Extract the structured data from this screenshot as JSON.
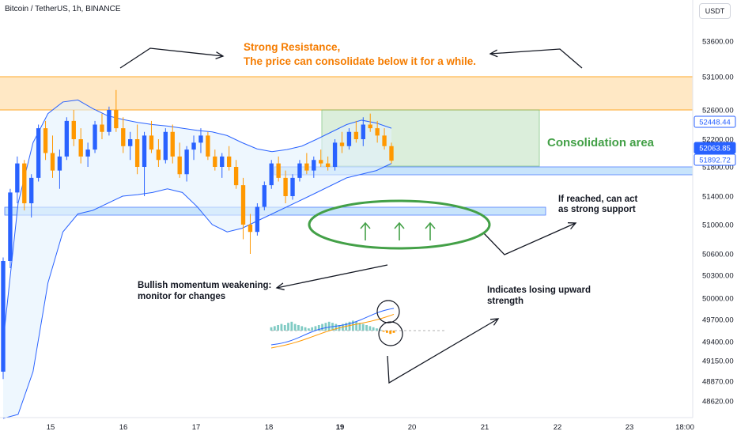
{
  "header": {
    "symbol": "Bitcoin / TetherUS, 1h, BINANCE",
    "currency": "USDT"
  },
  "colors": {
    "up": "#26a69a",
    "down": "#ef5350",
    "candle_up": "#2962ff",
    "candle_down": "#ff9800",
    "band": "#2962ff",
    "resistance_fill": "#ffe0b2",
    "support_fill": "#bbdefb",
    "consolidation_fill": "#c8e6c9",
    "annotation_orange": "#f57c00",
    "annotation_green": "#43a047"
  },
  "chart_data": {
    "type": "candlestick",
    "title": "Bitcoin / TetherUS, 1h, BINANCE",
    "y_axis": {
      "ticks": [
        53600,
        53100,
        52600,
        52200,
        51800,
        51400,
        51000,
        50600,
        50300,
        50000,
        49700,
        49400,
        49150,
        48870,
        48620
      ],
      "tick_labels": [
        "53600.00",
        "53100.00",
        "52600.00",
        "52200.00",
        "51800.00",
        "51400.00",
        "51000.00",
        "50600.00",
        "50300.00",
        "50000.00",
        "49700.00",
        "49400.00",
        "49150.00",
        "48870.00",
        "48620.00"
      ],
      "log_scale": true
    },
    "x_axis": {
      "tick_labels": [
        "15",
        "16",
        "17",
        "18",
        "19",
        "20",
        "21",
        "22",
        "23",
        "18:00"
      ],
      "bold_tick": "19"
    },
    "price_tags": [
      {
        "label": "52448.44",
        "value": 52448.44,
        "style": "plain"
      },
      {
        "label": "52063.85",
        "value": 52063.85,
        "style": "current"
      },
      {
        "label": "51892.72",
        "value": 51892.72,
        "style": "plain"
      }
    ],
    "zones": [
      {
        "name": "strong-resistance",
        "from": 52600,
        "to": 53060
      },
      {
        "name": "support-upper",
        "from": 51745,
        "to": 51890
      },
      {
        "name": "support-lower",
        "from": 51170,
        "to": 51300
      },
      {
        "name": "consolidation-area",
        "from": 51892,
        "to": 52620
      }
    ],
    "candles_ohlc": [
      [
        49000,
        50550,
        48900,
        50500
      ],
      [
        50500,
        51500,
        50400,
        51450
      ],
      [
        51450,
        51950,
        51300,
        51850
      ],
      [
        51850,
        51900,
        51200,
        51300
      ],
      [
        51300,
        51700,
        51100,
        51650
      ],
      [
        51650,
        52400,
        51600,
        52350
      ],
      [
        52350,
        52450,
        51900,
        52000
      ],
      [
        52000,
        52250,
        51650,
        51750
      ],
      [
        51750,
        52050,
        51500,
        51950
      ],
      [
        51950,
        52500,
        51900,
        52450
      ],
      [
        52450,
        52600,
        52100,
        52200
      ],
      [
        52200,
        52350,
        51850,
        51950
      ],
      [
        51950,
        52150,
        51800,
        52050
      ],
      [
        52050,
        52450,
        52000,
        52400
      ],
      [
        52400,
        52550,
        52200,
        52300
      ],
      [
        52300,
        52650,
        52250,
        52600
      ],
      [
        52600,
        52900,
        52300,
        52350
      ],
      [
        52350,
        52500,
        52000,
        52100
      ],
      [
        52100,
        52300,
        51900,
        52200
      ],
      [
        52200,
        52400,
        51700,
        51800
      ],
      [
        51800,
        52300,
        51400,
        52250
      ],
      [
        52250,
        52450,
        52000,
        52050
      ],
      [
        52050,
        52200,
        51800,
        51900
      ],
      [
        51900,
        52350,
        51850,
        52300
      ],
      [
        52300,
        52400,
        51850,
        51950
      ],
      [
        51950,
        52150,
        51650,
        51700
      ],
      [
        51700,
        52100,
        51600,
        52050
      ],
      [
        52050,
        52250,
        51900,
        52150
      ],
      [
        52150,
        52350,
        52000,
        52250
      ],
      [
        52250,
        52300,
        51900,
        51950
      ],
      [
        51950,
        52050,
        51750,
        51800
      ],
      [
        51800,
        52000,
        51650,
        51950
      ],
      [
        51950,
        52100,
        51750,
        51800
      ],
      [
        51800,
        51900,
        51500,
        51550
      ],
      [
        51550,
        51650,
        50800,
        51000
      ],
      [
        51000,
        51150,
        50600,
        50900
      ],
      [
        50900,
        51300,
        50850,
        51250
      ],
      [
        51250,
        51600,
        51200,
        51550
      ],
      [
        51550,
        51900,
        51500,
        51850
      ],
      [
        51850,
        51950,
        51600,
        51650
      ],
      [
        51650,
        51750,
        51300,
        51400
      ],
      [
        51400,
        51700,
        51350,
        51650
      ],
      [
        51650,
        51900,
        51600,
        51850
      ],
      [
        51850,
        52000,
        51700,
        51750
      ],
      [
        51750,
        51950,
        51650,
        51900
      ],
      [
        51900,
        52050,
        51800,
        51850
      ],
      [
        51850,
        51950,
        51750,
        51800
      ],
      [
        51800,
        52200,
        51750,
        52150
      ],
      [
        52150,
        52300,
        52000,
        52100
      ],
      [
        52100,
        52350,
        52050,
        52300
      ],
      [
        52300,
        52450,
        52150,
        52200
      ],
      [
        52200,
        52500,
        52100,
        52400
      ],
      [
        52400,
        52550,
        52300,
        52350
      ],
      [
        52350,
        52450,
        52150,
        52250
      ],
      [
        52250,
        52350,
        52050,
        52100
      ],
      [
        52100,
        52150,
        51850,
        51890
      ]
    ],
    "bollinger": {
      "upper": [
        49400,
        51300,
        52150,
        52550,
        52720,
        52750,
        52620,
        52520,
        52470,
        52430,
        52400,
        52380,
        52350,
        52320,
        52300,
        52250,
        52150,
        52060,
        52020,
        52050,
        52100,
        52200,
        52300,
        52400,
        52460,
        52420,
        52350
      ],
      "lower": [
        48400,
        48450,
        49000,
        50200,
        50900,
        51150,
        51200,
        51300,
        51400,
        51420,
        51450,
        51500,
        51450,
        51250,
        51000,
        50900,
        50950,
        51050,
        51150,
        51250,
        51350,
        51450,
        51550,
        51650,
        51700,
        51750,
        51850
      ]
    },
    "annotations": [
      {
        "kind": "title-line-1",
        "text": "Strong Resistance,"
      },
      {
        "kind": "title-line-2",
        "text": "The price can consolidate below it for a while."
      },
      {
        "kind": "zone-label",
        "text": "Consolidation area"
      },
      {
        "kind": "support-note-1",
        "text": "If reached, can act"
      },
      {
        "kind": "support-note-2",
        "text": "as strong support"
      },
      {
        "kind": "momentum-note-1",
        "text": "Bullish momentum weakening:"
      },
      {
        "kind": "momentum-note-2",
        "text": "monitor for changes"
      },
      {
        "kind": "strength-note-1",
        "text": "Indicates losing upward"
      },
      {
        "kind": "strength-note-2",
        "text": "strength"
      }
    ],
    "macd_histogram": [
      3,
      4,
      5,
      6,
      5,
      7,
      8,
      6,
      5,
      4,
      3,
      2,
      3,
      4,
      5,
      6,
      7,
      8,
      7,
      6,
      5,
      6,
      7,
      8,
      9,
      8,
      7,
      6,
      5,
      4,
      3,
      2,
      1,
      -1,
      -2,
      -3,
      -2
    ]
  }
}
